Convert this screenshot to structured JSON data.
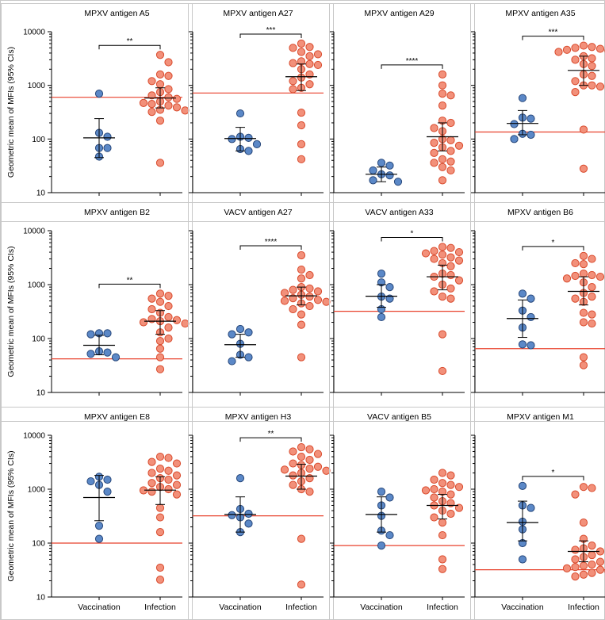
{
  "figure": {
    "y_axis_label": "Geometric mean of MFIs (95% CIs)",
    "y_ticks": [
      "10",
      "100",
      "1000",
      "10000"
    ],
    "groups": [
      "Vaccination",
      "Infection"
    ],
    "colors": {
      "vaccination_fill": "#5b88c7",
      "vaccination_edge": "#27477a",
      "infection_fill": "#f2907a",
      "infection_edge": "#d94a2c",
      "threshold": "#e8412c"
    }
  },
  "chart_data": [
    {
      "type": "scatter",
      "title": "MPXV antigen A5",
      "ylim": [
        10,
        10000
      ],
      "yscale": "log",
      "xlabel": "",
      "ylabel": "Geometric mean of MFIs (95% CIs)",
      "threshold": 600,
      "significance": "**",
      "series": [
        {
          "name": "Vaccination",
          "values": [
            700,
            130,
            110,
            68,
            68,
            47
          ],
          "geomean": 105,
          "ci": [
            45,
            240
          ]
        },
        {
          "name": "Infection",
          "values": [
            3700,
            2700,
            1600,
            1500,
            1200,
            1050,
            850,
            750,
            650,
            600,
            560,
            500,
            470,
            450,
            420,
            390,
            350,
            340,
            320,
            220,
            36
          ],
          "geomean": 580,
          "ci": [
            380,
            900
          ]
        }
      ]
    },
    {
      "type": "scatter",
      "title": "MPXV antigen A27",
      "ylim": [
        10,
        10000
      ],
      "yscale": "log",
      "xlabel": "",
      "ylabel": "Geometric mean of MFIs (95% CIs)",
      "threshold": 720,
      "significance": "***",
      "series": [
        {
          "name": "Vaccination",
          "values": [
            300,
            110,
            105,
            100,
            80,
            65,
            60
          ],
          "geomean": 102,
          "ci": [
            60,
            165
          ]
        },
        {
          "name": "Infection",
          "values": [
            6000,
            5200,
            5000,
            4200,
            3800,
            3500,
            2800,
            2600,
            2500,
            2400,
            2000,
            1600,
            1400,
            1200,
            1050,
            900,
            850,
            310,
            180,
            80,
            42
          ],
          "geomean": 1450,
          "ci": [
            800,
            2500
          ]
        }
      ]
    },
    {
      "type": "scatter",
      "title": "MPXV antigen A29",
      "ylim": [
        10,
        10000
      ],
      "yscale": "log",
      "xlabel": "",
      "ylabel": "Geometric mean of MFIs (95% CIs)",
      "threshold": null,
      "significance": "****",
      "series": [
        {
          "name": "Vaccination",
          "values": [
            36,
            32,
            26,
            22,
            21,
            17,
            16
          ],
          "geomean": 22,
          "ci": [
            16,
            30
          ]
        },
        {
          "name": "Infection",
          "values": [
            1600,
            1000,
            700,
            650,
            420,
            220,
            200,
            160,
            140,
            100,
            95,
            85,
            75,
            70,
            60,
            55,
            42,
            38,
            36,
            30,
            26,
            17
          ],
          "geomean": 110,
          "ci": [
            60,
            200
          ]
        }
      ]
    },
    {
      "type": "scatter",
      "title": "MPXV antigen A35",
      "ylim": [
        10,
        10000
      ],
      "yscale": "log",
      "xlabel": "",
      "ylabel": "Geometric mean of MFIs (95% CIs)",
      "threshold": 135,
      "significance": "***",
      "series": [
        {
          "name": "Vaccination",
          "values": [
            580,
            250,
            240,
            190,
            125,
            120,
            100
          ],
          "geomean": 195,
          "ci": [
            120,
            340
          ]
        },
        {
          "name": "Infection",
          "values": [
            5500,
            5200,
            5000,
            4800,
            4600,
            4400,
            4200,
            4000,
            3500,
            3200,
            3000,
            2500,
            2300,
            1600,
            1500,
            1200,
            1000,
            1000,
            950,
            750,
            150,
            28
          ],
          "geomean": 1900,
          "ci": [
            1000,
            3500
          ]
        }
      ]
    },
    {
      "type": "scatter",
      "title": "MPXV antigen B2",
      "ylim": [
        10,
        10000
      ],
      "yscale": "log",
      "xlabel": "",
      "ylabel": "Geometric mean of MFIs (95% CIs)",
      "threshold": 42,
      "significance": "**",
      "series": [
        {
          "name": "Vaccination",
          "values": [
            125,
            125,
            120,
            58,
            55,
            52,
            45
          ],
          "geomean": 75,
          "ci": [
            50,
            115
          ]
        },
        {
          "name": "Infection",
          "values": [
            680,
            620,
            550,
            480,
            400,
            350,
            300,
            250,
            230,
            220,
            210,
            200,
            190,
            160,
            130,
            100,
            90,
            65,
            45,
            27
          ],
          "geomean": 210,
          "ci": [
            120,
            330
          ]
        }
      ]
    },
    {
      "type": "scatter",
      "title": "VACV antigen A27",
      "ylim": [
        10,
        10000
      ],
      "yscale": "log",
      "xlabel": "",
      "ylabel": "Geometric mean of MFIs (95% CIs)",
      "threshold": null,
      "significance": "****",
      "series": [
        {
          "name": "Vaccination",
          "values": [
            150,
            130,
            120,
            80,
            50,
            45,
            38
          ],
          "geomean": 77,
          "ci": [
            45,
            120
          ]
        },
        {
          "name": "Infection",
          "values": [
            3500,
            1900,
            1500,
            1300,
            900,
            850,
            800,
            750,
            700,
            650,
            600,
            560,
            520,
            500,
            480,
            450,
            400,
            350,
            280,
            180,
            45
          ],
          "geomean": 620,
          "ci": [
            420,
            900
          ]
        }
      ]
    },
    {
      "type": "scatter",
      "title": "VACV antigen A33",
      "ylim": [
        10,
        10000
      ],
      "yscale": "log",
      "xlabel": "",
      "ylabel": "Geometric mean of MFIs (95% CIs)",
      "threshold": 320,
      "significance": "*",
      "series": [
        {
          "name": "Vaccination",
          "values": [
            1600,
            1100,
            900,
            600,
            550,
            350,
            250
          ],
          "geomean": 610,
          "ci": [
            380,
            1000
          ]
        },
        {
          "name": "Infection",
          "values": [
            5000,
            4800,
            4200,
            4000,
            3800,
            3600,
            3200,
            3000,
            2800,
            2500,
            2200,
            1600,
            1500,
            1400,
            1200,
            1000,
            850,
            750,
            600,
            550,
            120,
            25
          ],
          "geomean": 1400,
          "ci": [
            800,
            2300
          ]
        }
      ]
    },
    {
      "type": "scatter",
      "title": "MPXV antigen B6",
      "ylim": [
        10,
        10000
      ],
      "yscale": "log",
      "xlabel": "",
      "ylabel": "Geometric mean of MFIs (95% CIs)",
      "threshold": 65,
      "significance": "*",
      "series": [
        {
          "name": "Vaccination",
          "values": [
            680,
            550,
            330,
            250,
            160,
            78,
            75
          ],
          "geomean": 235,
          "ci": [
            105,
            520
          ]
        },
        {
          "name": "Infection",
          "values": [
            3400,
            3000,
            2500,
            2400,
            1600,
            1500,
            1450,
            1400,
            1300,
            1100,
            900,
            700,
            600,
            550,
            480,
            300,
            280,
            200,
            190,
            45,
            32
          ],
          "geomean": 750,
          "ci": [
            420,
            1400
          ]
        }
      ]
    },
    {
      "type": "scatter",
      "title": "MPXV antigen E8",
      "ylim": [
        10,
        10000
      ],
      "yscale": "log",
      "xlabel": "",
      "ylabel": "Geometric mean of MFIs (95% CIs)",
      "threshold": 100,
      "significance": "",
      "series": [
        {
          "name": "Vaccination",
          "values": [
            1700,
            1500,
            1400,
            1200,
            900,
            210,
            120
          ],
          "geomean": 700,
          "ci": [
            260,
            1800
          ]
        },
        {
          "name": "Infection",
          "values": [
            4000,
            3800,
            3200,
            3000,
            2400,
            2200,
            2000,
            1800,
            1600,
            1500,
            1300,
            1200,
            1100,
            1000,
            950,
            900,
            800,
            450,
            300,
            160,
            35,
            21
          ],
          "geomean": 960,
          "ci": [
            520,
            1700
          ]
        }
      ]
    },
    {
      "type": "scatter",
      "title": "MPXV antigen H3",
      "ylim": [
        10,
        10000
      ],
      "yscale": "log",
      "xlabel": "",
      "ylabel": "Geometric mean of MFIs (95% CIs)",
      "threshold": 320,
      "significance": "**",
      "series": [
        {
          "name": "Vaccination",
          "values": [
            1600,
            430,
            350,
            330,
            300,
            230,
            160
          ],
          "geomean": 340,
          "ci": [
            160,
            720
          ]
        },
        {
          "name": "Infection",
          "values": [
            6000,
            5500,
            5000,
            4500,
            4000,
            3500,
            3000,
            2800,
            2600,
            2400,
            2300,
            2200,
            2000,
            1800,
            1600,
            1400,
            1200,
            1000,
            900,
            120,
            17
          ],
          "geomean": 1750,
          "ci": [
            1000,
            2900
          ]
        }
      ]
    },
    {
      "type": "scatter",
      "title": "VACV antigen B5",
      "ylim": [
        10,
        10000
      ],
      "yscale": "log",
      "xlabel": "",
      "ylabel": "Geometric mean of MFIs (95% CIs)",
      "threshold": 90,
      "significance": "",
      "series": [
        {
          "name": "Vaccination",
          "values": [
            900,
            700,
            500,
            320,
            170,
            140,
            90
          ],
          "geomean": 340,
          "ci": [
            160,
            720
          ]
        },
        {
          "name": "Infection",
          "values": [
            2000,
            1800,
            1500,
            1300,
            1200,
            1100,
            1000,
            950,
            900,
            800,
            700,
            600,
            550,
            500,
            450,
            400,
            350,
            300,
            240,
            140,
            50,
            33
          ],
          "geomean": 500,
          "ci": [
            280,
            800
          ]
        }
      ]
    },
    {
      "type": "scatter",
      "title": "MPXV antigen M1",
      "ylim": [
        10,
        10000
      ],
      "yscale": "log",
      "xlabel": "",
      "ylabel": "Geometric mean of MFIs (95% CIs)",
      "threshold": 32,
      "significance": "*",
      "series": [
        {
          "name": "Vaccination",
          "values": [
            1150,
            500,
            450,
            250,
            180,
            100,
            50
          ],
          "geomean": 240,
          "ci": [
            110,
            600
          ]
        },
        {
          "name": "Infection",
          "values": [
            1100,
            1050,
            800,
            240,
            120,
            90,
            80,
            75,
            70,
            60,
            55,
            50,
            45,
            40,
            38,
            36,
            34,
            32,
            30,
            28,
            26,
            24
          ],
          "geomean": 70,
          "ci": [
            45,
            110
          ]
        }
      ]
    }
  ]
}
